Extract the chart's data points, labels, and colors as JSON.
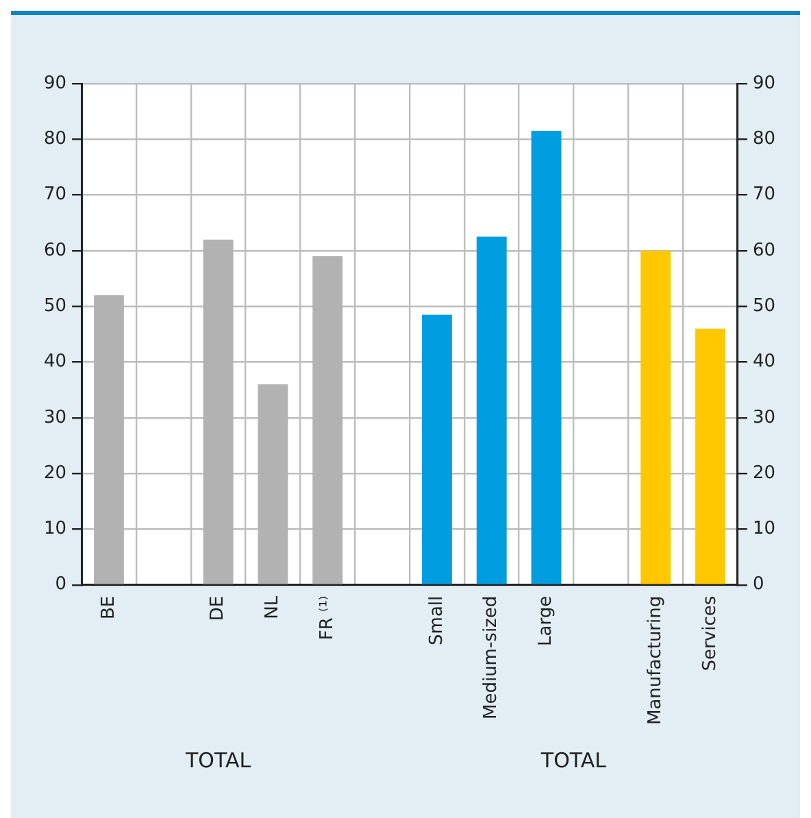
{
  "chart_data": {
    "type": "bar",
    "categories": [
      "BE",
      null,
      "DE",
      "NL",
      "FR ⁽¹⁾",
      null,
      "Small",
      "Medium-sized",
      "Large",
      null,
      "Manufacturing",
      "Services"
    ],
    "values": [
      52,
      null,
      62,
      36,
      59,
      null,
      48.5,
      62.5,
      81.5,
      null,
      60,
      46
    ],
    "colors": [
      "#b2b2b2",
      "#b2b2b2",
      "#b2b2b2",
      "#b2b2b2",
      "#b2b2b2",
      "#009ee0",
      "#009ee0",
      "#009ee0",
      "#009ee0",
      "#ffc800",
      "#ffc800",
      "#ffc800"
    ],
    "ylim": [
      0,
      90
    ],
    "yticks": [
      0,
      10,
      20,
      30,
      40,
      50,
      60,
      70,
      80,
      90
    ],
    "y2lim": [
      0,
      90
    ],
    "y2ticks": [
      0,
      10,
      20,
      30,
      40,
      50,
      60,
      70,
      80,
      90
    ],
    "grid": true,
    "annotations": [
      "TOTAL",
      "TOTAL"
    ]
  }
}
